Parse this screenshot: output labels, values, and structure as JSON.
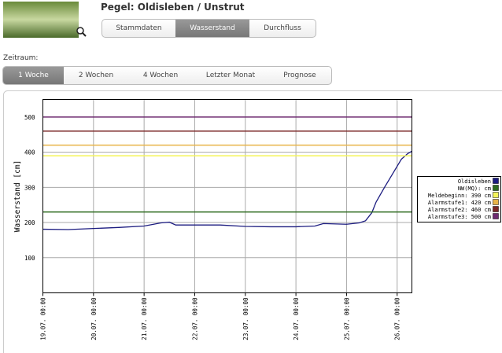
{
  "header": {
    "title": "Pegel: Oldisleben / Unstrut",
    "tabs": [
      "Stammdaten",
      "Wasserstand",
      "Durchfluss"
    ]
  },
  "period": {
    "label": "Zeitraum:",
    "tabs": [
      "1 Woche",
      "2 Wochen",
      "4 Wochen",
      "Letzter Monat",
      "Prognose"
    ]
  },
  "chart_data": {
    "type": "line",
    "y_label": "Wasserstand [cm]",
    "xlim": [
      0,
      175
    ],
    "ylim": [
      0,
      550
    ],
    "yticks": [
      100,
      200,
      300,
      400,
      500
    ],
    "xticks": [
      {
        "value": 0,
        "label": "19.07. 00:00"
      },
      {
        "value": 24,
        "label": "20.07. 00:00"
      },
      {
        "value": 48,
        "label": "21.07. 00:00"
      },
      {
        "value": 72,
        "label": "22.07. 00:00"
      },
      {
        "value": 96,
        "label": "23.07. 00:00"
      },
      {
        "value": 120,
        "label": "24.07. 00:00"
      },
      {
        "value": 144,
        "label": "25.07. 00:00"
      },
      {
        "value": 168,
        "label": "26.07. 00:00"
      }
    ],
    "grid": true,
    "x": [
      0,
      12,
      24,
      36,
      48,
      56,
      60,
      63,
      72,
      84,
      96,
      108,
      120,
      129,
      133,
      144,
      150,
      153,
      156,
      158,
      162,
      165,
      167,
      170,
      173,
      175
    ],
    "series": [
      {
        "name": "Oldisleben",
        "color": "#1c1c80",
        "values": [
          181,
          180,
          183,
          186,
          190,
          199,
          201,
          193,
          193,
          193,
          189,
          188,
          188,
          190,
          197,
          195,
          199,
          205,
          228,
          258,
          300,
          330,
          350,
          380,
          396,
          403
        ]
      },
      {
        "name": "NW(MQ):   cm",
        "color": "#2d6a1e",
        "value": 230
      },
      {
        "name": "Meldebeginn: 390 cm",
        "color": "#f4f45a",
        "value": 390
      },
      {
        "name": "Alarmstufe1: 420 cm",
        "color": "#e8b448",
        "value": 420
      },
      {
        "name": "Alarmstufe2: 460 cm",
        "color": "#7a2626",
        "value": 460
      },
      {
        "name": "Alarmstufe3: 500 cm",
        "color": "#6e2a70",
        "value": 500
      }
    ]
  }
}
